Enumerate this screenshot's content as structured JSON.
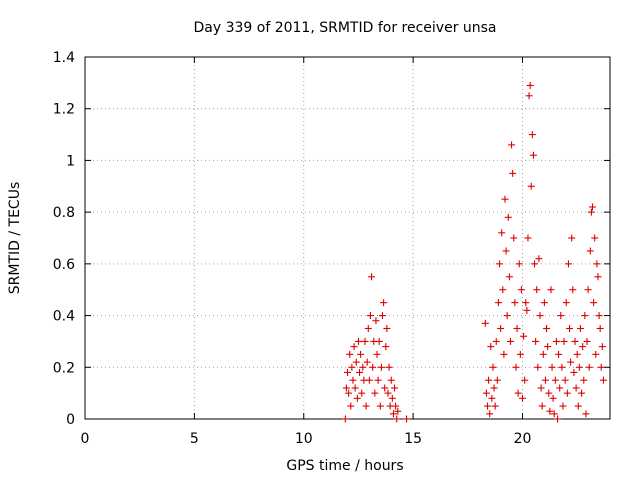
{
  "chart_data": {
    "type": "scatter",
    "title": "Day 339 of 2011, SRMTID for receiver unsa",
    "xlabel": "GPS time / hours",
    "ylabel": "SRMTID / TECUs",
    "xlim": [
      0,
      24
    ],
    "ylim": [
      0,
      1.4
    ],
    "xticks": [
      0,
      5,
      10,
      15,
      20
    ],
    "yticks": [
      0,
      0.2,
      0.4,
      0.6,
      0.8,
      1,
      1.2,
      1.4
    ],
    "xtick_labels": [
      "0",
      "5",
      "10",
      "15",
      "20"
    ],
    "ytick_labels": [
      "0",
      "0.2",
      "0.4",
      "0.6",
      "0.8",
      "1",
      "1.2",
      "1.4"
    ],
    "grid": true,
    "marker": "+",
    "color": "#e00000",
    "series": [
      {
        "x": [
          11.9,
          11.95,
          12.0,
          12.05,
          12.1,
          12.15,
          12.2,
          12.25,
          12.3,
          12.35,
          12.4,
          12.45,
          12.5,
          12.55,
          12.6,
          12.65,
          12.7,
          12.75,
          12.8,
          12.85,
          12.9,
          12.95,
          13.0,
          13.05,
          13.1,
          13.15,
          13.2,
          13.25,
          13.3,
          13.35,
          13.4,
          13.45,
          13.5,
          13.55,
          13.6,
          13.65,
          13.7,
          13.75,
          13.8,
          13.85,
          13.9,
          13.95,
          14.0,
          14.05,
          14.1,
          14.15,
          14.2,
          14.25,
          14.3,
          14.7,
          18.3,
          18.35,
          18.4,
          18.45,
          18.5,
          18.55,
          18.6,
          18.65,
          18.7,
          18.75,
          18.8,
          18.85,
          18.9,
          18.95,
          19.0,
          19.05,
          19.1,
          19.15,
          19.2,
          19.25,
          19.3,
          19.35,
          19.4,
          19.45,
          19.5,
          19.55,
          19.6,
          19.65,
          19.7,
          19.75,
          19.8,
          19.85,
          19.9,
          19.95,
          20.0,
          20.05,
          20.1,
          20.15,
          20.2,
          20.25,
          20.3,
          20.35,
          20.4,
          20.45,
          20.5,
          20.55,
          20.6,
          20.65,
          20.7,
          20.75,
          20.8,
          20.85,
          20.9,
          20.95,
          21.0,
          21.05,
          21.1,
          21.15,
          21.2,
          21.25,
          21.3,
          21.35,
          21.4,
          21.45,
          21.5,
          21.55,
          21.6,
          21.65,
          21.7,
          21.75,
          21.8,
          21.85,
          21.9,
          21.95,
          22.0,
          22.05,
          22.1,
          22.15,
          22.2,
          22.25,
          22.3,
          22.35,
          22.4,
          22.45,
          22.5,
          22.55,
          22.6,
          22.65,
          22.7,
          22.75,
          22.8,
          22.85,
          22.9,
          22.95,
          23.0,
          23.05,
          23.1,
          23.15,
          23.2,
          23.25,
          23.3,
          23.35,
          23.4,
          23.45,
          23.5,
          23.55,
          23.6,
          23.65,
          23.7
        ],
        "y": [
          0.0,
          0.12,
          0.18,
          0.1,
          0.25,
          0.05,
          0.2,
          0.15,
          0.28,
          0.12,
          0.22,
          0.08,
          0.3,
          0.18,
          0.25,
          0.1,
          0.2,
          0.15,
          0.3,
          0.05,
          0.22,
          0.35,
          0.15,
          0.4,
          0.55,
          0.2,
          0.3,
          0.1,
          0.38,
          0.25,
          0.15,
          0.3,
          0.05,
          0.2,
          0.4,
          0.45,
          0.12,
          0.28,
          0.35,
          0.1,
          0.2,
          0.05,
          0.15,
          0.08,
          0.02,
          0.12,
          0.05,
          0.0,
          0.03,
          0.0,
          0.37,
          0.1,
          0.05,
          0.15,
          0.02,
          0.28,
          0.08,
          0.2,
          0.12,
          0.05,
          0.3,
          0.15,
          0.45,
          0.6,
          0.35,
          0.72,
          0.5,
          0.25,
          0.85,
          0.65,
          0.4,
          0.78,
          0.55,
          0.3,
          1.06,
          0.95,
          0.7,
          0.45,
          0.2,
          0.35,
          0.1,
          0.6,
          0.25,
          0.5,
          0.08,
          0.32,
          0.15,
          0.45,
          0.42,
          0.7,
          1.25,
          1.29,
          0.9,
          1.1,
          1.02,
          0.6,
          0.3,
          0.5,
          0.2,
          0.62,
          0.4,
          0.12,
          0.05,
          0.25,
          0.45,
          0.15,
          0.35,
          0.28,
          0.1,
          0.03,
          0.5,
          0.2,
          0.08,
          0.02,
          0.15,
          0.3,
          0.0,
          0.25,
          0.12,
          0.4,
          0.2,
          0.05,
          0.3,
          0.15,
          0.45,
          0.1,
          0.6,
          0.35,
          0.22,
          0.7,
          0.5,
          0.18,
          0.3,
          0.12,
          0.25,
          0.05,
          0.2,
          0.35,
          0.1,
          0.28,
          0.15,
          0.4,
          0.02,
          0.3,
          0.5,
          0.2,
          0.65,
          0.8,
          0.82,
          0.45,
          0.7,
          0.25,
          0.6,
          0.55,
          0.4,
          0.35,
          0.2,
          0.28,
          0.15
        ]
      }
    ]
  }
}
